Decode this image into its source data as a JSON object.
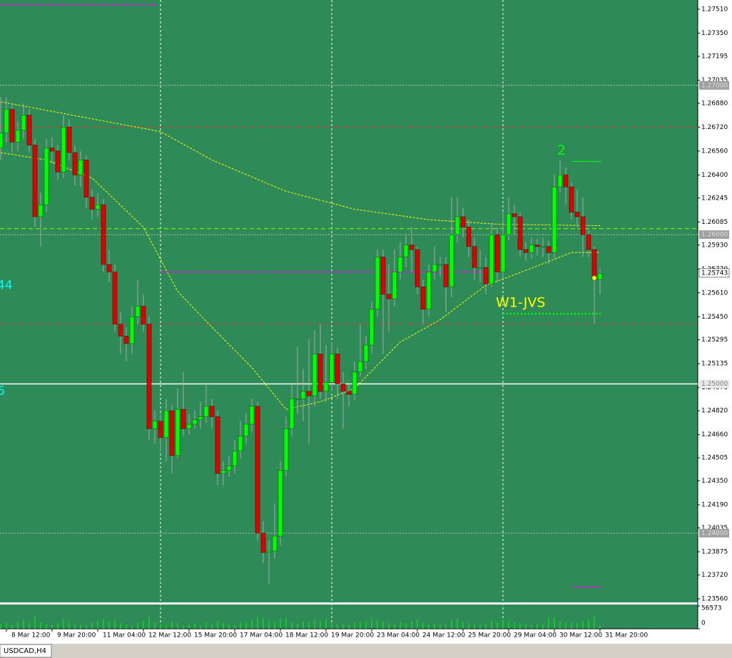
{
  "chart_data": {
    "type": "candlestick",
    "symbol": "USDCAD,H4",
    "categories": [
      null,
      "8 Mar 12:00",
      null,
      null,
      null,
      null,
      null,
      null,
      null,
      "9 Mar 20:00",
      null,
      null,
      null,
      null,
      null,
      null,
      null,
      "11 Mar 04:00",
      null,
      null,
      null,
      null,
      null,
      null,
      null,
      "12 Mar 12:00",
      null,
      null,
      null,
      null,
      null,
      null,
      null,
      "15 Mar 20:00",
      null,
      null,
      null,
      null,
      null,
      null,
      null,
      "17 Mar 04:00",
      null,
      null,
      null,
      null,
      null,
      null,
      null,
      "18 Mar 12:00",
      null,
      null,
      null,
      null,
      null,
      null,
      null,
      "19 Mar 20:00",
      null,
      null,
      null,
      null,
      null,
      null,
      null,
      "23 Mar 04:00",
      null,
      null,
      null,
      null,
      null,
      null,
      null,
      "24 Mar 12:00",
      null,
      null,
      null,
      null,
      null,
      null,
      null,
      "25 Mar 20:00",
      null,
      null,
      null,
      null,
      null,
      null,
      null,
      "29 Mar 04:00",
      null,
      null,
      null,
      null,
      null,
      null,
      null,
      "30 Mar 12:00",
      null,
      null,
      null,
      null,
      null,
      null,
      null,
      "31 Mar 20:00"
    ],
    "open": [
      1.2658,
      1.2668,
      1.2684,
      1.2662,
      1.267,
      1.268,
      1.266,
      1.2612,
      1.262,
      1.2658,
      1.2656,
      1.2642,
      1.2672,
      1.2655,
      1.264,
      1.265,
      1.2625,
      1.2617,
      1.262,
      1.258,
      1.2575,
      1.254,
      1.2532,
      1.2527,
      1.2545,
      1.2552,
      1.254,
      1.247,
      1.2475,
      1.2464,
      1.2482,
      1.2452,
      1.2483,
      1.247,
      1.2473,
      1.2476,
      1.2478,
      1.2485,
      1.2478,
      1.244,
      1.2442,
      1.2445,
      1.2455,
      1.2465,
      1.2473,
      1.2485,
      1.24,
      1.2387,
      1.2388,
      1.2398,
      1.2442,
      1.247,
      1.249,
      1.249,
      1.2495,
      1.2492,
      1.252,
      1.2495,
      1.2501,
      1.252,
      1.25,
      1.2495,
      1.2493,
      1.2508,
      1.2515,
      1.2526,
      1.255,
      1.2585,
      1.256,
      1.2557,
      1.2575,
      1.2585,
      1.2593,
      1.259,
      1.2565,
      1.255,
      1.2575,
      1.258,
      1.258,
      1.2565,
      1.26,
      1.2612,
      1.2605,
      1.2592,
      1.2578,
      1.2578,
      1.2567,
      1.26,
      1.2575,
      1.26,
      1.2614,
      1.2612,
      1.259,
      1.2588,
      1.2593,
      1.2592,
      1.2592,
      1.2588,
      1.2632,
      1.264,
      1.2632,
      1.2615,
      1.2612,
      1.26,
      1.259,
      1.257
    ],
    "high": [
      1.2692,
      1.2692,
      1.2688,
      1.2676,
      1.2688,
      1.2684,
      1.2664,
      1.2628,
      1.2664,
      1.2665,
      1.266,
      1.268,
      1.2677,
      1.266,
      1.2656,
      1.2653,
      1.263,
      1.2628,
      1.2624,
      1.259,
      1.258,
      1.2548,
      1.2538,
      1.2552,
      1.257,
      1.256,
      1.2545,
      1.2482,
      1.248,
      1.249,
      1.2486,
      1.2497,
      1.2508,
      1.248,
      1.2482,
      1.2488,
      1.25,
      1.249,
      1.2482,
      1.2448,
      1.2452,
      1.2462,
      1.2475,
      1.248,
      1.249,
      1.2488,
      1.2408,
      1.2395,
      1.242,
      1.2448,
      1.2478,
      1.25,
      1.2525,
      1.251,
      1.253,
      1.2536,
      1.254,
      1.2526,
      1.2528,
      1.2524,
      1.2508,
      1.25,
      1.2515,
      1.254,
      1.2532,
      1.2555,
      1.259,
      1.259,
      1.258,
      1.259,
      1.2595,
      1.26,
      1.2605,
      1.2592,
      1.257,
      1.258,
      1.2592,
      1.2585,
      1.2585,
      1.2625,
      1.2625,
      1.2618,
      1.261,
      1.2598,
      1.259,
      1.2585,
      1.2608,
      1.2605,
      1.2615,
      1.2625,
      1.262,
      1.2615,
      1.2595,
      1.2598,
      1.2597,
      1.2598,
      1.2596,
      1.264,
      1.265,
      1.2645,
      1.2635,
      1.263,
      1.2625,
      1.2603,
      1.2592,
      1.2577
    ],
    "low": [
      1.265,
      1.2662,
      1.2655,
      1.2656,
      1.2664,
      1.2655,
      1.2605,
      1.2592,
      1.2615,
      1.2648,
      1.2637,
      1.2638,
      1.265,
      1.2633,
      1.2632,
      1.2618,
      1.261,
      1.2612,
      1.2575,
      1.2568,
      1.2535,
      1.252,
      1.2515,
      1.252,
      1.254,
      1.2535,
      1.2462,
      1.246,
      1.2455,
      1.2448,
      1.244,
      1.245,
      1.2465,
      1.2466,
      1.247,
      1.247,
      1.2474,
      1.247,
      1.2432,
      1.2432,
      1.2438,
      1.244,
      1.245,
      1.246,
      1.2468,
      1.2395,
      1.238,
      1.2366,
      1.2383,
      1.2392,
      1.2438,
      1.2465,
      1.248,
      1.2475,
      1.246,
      1.2485,
      1.249,
      1.2488,
      1.2495,
      1.249,
      1.247,
      1.2485,
      1.2489,
      1.2505,
      1.251,
      1.252,
      1.2545,
      1.252,
      1.2535,
      1.2552,
      1.257,
      1.2578,
      1.2575,
      1.256,
      1.254,
      1.2545,
      1.257,
      1.2572,
      1.2548,
      1.2558,
      1.2595,
      1.2598,
      1.2585,
      1.257,
      1.2568,
      1.256,
      1.2565,
      1.2568,
      1.257,
      1.2596,
      1.26,
      1.2585,
      1.2582,
      1.2584,
      1.2586,
      1.2585,
      1.258,
      1.2584,
      1.2628,
      1.262,
      1.261,
      1.2605,
      1.2585,
      1.2585,
      1.254,
      1.256
    ],
    "close": [
      1.2668,
      1.2684,
      1.2662,
      1.267,
      1.268,
      1.266,
      1.2612,
      1.262,
      1.2658,
      1.2656,
      1.2642,
      1.2672,
      1.2655,
      1.264,
      1.265,
      1.2625,
      1.2617,
      1.262,
      1.258,
      1.2575,
      1.254,
      1.2532,
      1.2527,
      1.2545,
      1.2552,
      1.254,
      1.247,
      1.2475,
      1.2464,
      1.2482,
      1.2452,
      1.2483,
      1.247,
      1.2473,
      1.2476,
      1.2478,
      1.2485,
      1.2478,
      1.244,
      1.2442,
      1.2445,
      1.2455,
      1.2465,
      1.2473,
      1.2485,
      1.24,
      1.2387,
      1.2388,
      1.2398,
      1.2442,
      1.247,
      1.249,
      1.249,
      1.2495,
      1.2492,
      1.252,
      1.2495,
      1.2501,
      1.252,
      1.25,
      1.2495,
      1.2493,
      1.2508,
      1.2515,
      1.2526,
      1.255,
      1.2585,
      1.256,
      1.2557,
      1.2575,
      1.2585,
      1.2593,
      1.259,
      1.2565,
      1.255,
      1.2575,
      1.258,
      1.258,
      1.2565,
      1.26,
      1.2612,
      1.2605,
      1.2592,
      1.2578,
      1.2578,
      1.2567,
      1.26,
      1.2575,
      1.26,
      1.2614,
      1.2612,
      1.259,
      1.2588,
      1.2593,
      1.2592,
      1.2592,
      1.2588,
      1.2632,
      1.264,
      1.2632,
      1.2615,
      1.2612,
      1.26,
      1.259,
      1.257,
      1.2574
    ],
    "up_color": "#00ff00",
    "down_color": "#e00000",
    "volume": [
      12000,
      15000,
      9000,
      18000,
      22000,
      14000,
      30000,
      16000,
      11000,
      9000,
      13000,
      24000,
      17000,
      12000,
      10000,
      8000,
      15000,
      20000,
      25000,
      18000,
      22000,
      14000,
      12000,
      9000,
      16000,
      21000,
      28000,
      15000,
      12000,
      10000,
      18000,
      14000,
      9000,
      11000,
      13000,
      8000,
      16000,
      12000,
      20000,
      15000,
      11000,
      9000,
      14000,
      17000,
      22000,
      30000,
      26000,
      20000,
      18000,
      24000,
      27000,
      15000,
      12000,
      18000,
      16000,
      22000,
      19000,
      25000,
      14000,
      11000,
      13000,
      9000,
      15000,
      17000,
      20000,
      24000,
      21000,
      18000,
      14000,
      12000,
      16000,
      13000,
      19000,
      22000,
      15000,
      11000,
      14000,
      10000,
      12000,
      23000,
      25000,
      18000,
      14000,
      12000,
      10000,
      13000,
      20000,
      16000,
      22000,
      19000,
      15000,
      13000,
      11000,
      9000,
      12000,
      10000,
      26000,
      28000,
      20000,
      15000,
      17000,
      14000,
      19000,
      22000,
      30000,
      8000
    ],
    "volume_color": "#00ff00",
    "volume_ylim": [
      0,
      56573
    ],
    "volume_ticks": [
      {
        "value": 56573,
        "label": "56573"
      },
      0
    ],
    "ylim": [
      1.23536,
      1.27572
    ],
    "yticks": [
      {
        "value": 1.2751,
        "label": "1.27510"
      },
      {
        "value": 1.2735,
        "label": "1.27350"
      },
      {
        "value": 1.27195,
        "label": "1.27195"
      },
      {
        "value": 1.27035,
        "label": "1.27035"
      },
      {
        "value": 1.2688,
        "label": "1.26880"
      },
      {
        "value": 1.2672,
        "label": "1.26720"
      },
      {
        "value": 1.2656,
        "label": "1.26560"
      },
      {
        "value": 1.264,
        "label": "1.26400"
      },
      {
        "value": 1.26245,
        "label": "1.26245"
      },
      {
        "value": 1.26085,
        "label": "1.26085"
      },
      {
        "value": 1.2593,
        "label": "1.25930"
      },
      {
        "value": 1.2577,
        "label": "1.25770"
      },
      {
        "value": 1.2561,
        "label": "1.25610"
      },
      {
        "value": 1.2545,
        "label": "1.25450"
      },
      {
        "value": 1.25295,
        "label": "1.25295"
      },
      {
        "value": 1.25135,
        "label": "1.25135"
      },
      {
        "value": 1.24975,
        "label": "1.24975"
      },
      {
        "value": 1.2482,
        "label": "1.24820"
      },
      {
        "value": 1.2466,
        "label": "1.24660"
      },
      {
        "value": 1.24505,
        "label": "1.24505"
      },
      {
        "value": 1.2435,
        "label": "1.24350"
      },
      {
        "value": 1.2419,
        "label": "1.24190"
      },
      {
        "value": 1.24035,
        "label": "1.24035"
      },
      {
        "value": 1.23875,
        "label": "1.23875"
      },
      {
        "value": 1.2372,
        "label": "1.23720"
      },
      {
        "value": 1.2356,
        "label": "1.23560"
      }
    ],
    "lines": [
      {
        "color": "#ffff00",
        "x": [
          0,
          28,
          37,
          50,
          62,
          75,
          87,
          105
        ],
        "values": [
          1.2689,
          1.2669,
          1.265,
          1.2629,
          1.2617,
          1.261,
          1.2607,
          1.2606
        ]
      },
      {
        "color": "#ffff00",
        "x": [
          0,
          8,
          16,
          25,
          31,
          37,
          44,
          50,
          56,
          62,
          70,
          77,
          85,
          92,
          100,
          105
        ],
        "values": [
          1.2655,
          1.265,
          1.2638,
          1.2605,
          1.2562,
          1.2538,
          1.2511,
          1.2483,
          1.2488,
          1.2497,
          1.2528,
          1.2543,
          1.2566,
          1.2576,
          1.2588,
          1.2588
        ]
      }
    ],
    "levels": [
      {
        "value": 1.27,
        "label": "1.27000",
        "style": "grey"
      },
      {
        "value": 1.2672,
        "style": "red"
      },
      {
        "value": 1.2604,
        "style": "green"
      },
      {
        "value": 1.26,
        "label": "1.26000",
        "style": "grey"
      },
      {
        "value": 1.254,
        "style": "red"
      },
      {
        "value": 1.25,
        "label": "1.25000",
        "style": "white"
      },
      {
        "value": 1.24,
        "label": "1.24000",
        "style": "grey"
      }
    ],
    "last_price": {
      "value": 1.25743,
      "label": "1.25743"
    },
    "segments": [
      {
        "value": 1.2754,
        "from": 0,
        "to": 27,
        "color": "#ff00ff",
        "style": "dotted"
      },
      {
        "value": 1.2575,
        "from": 28,
        "to": 87,
        "color": "#ff00ff",
        "style": "dotted"
      },
      {
        "value": 1.2547,
        "from": 88,
        "to": 105,
        "color": "#00ff00",
        "style": "dotted",
        "label": "W1-JVS",
        "label_color": "#ffff00"
      },
      {
        "value": 1.2649,
        "from": 100,
        "to": 105,
        "color": "#00ff00",
        "style": "solid",
        "label": "2",
        "label_color": "#00ff00"
      },
      {
        "value": 1.2364,
        "from": 100,
        "to": 105,
        "color": "#ff00ff",
        "style": "solid"
      }
    ],
    "marker": {
      "x": 104,
      "value": 1.2571,
      "color": "#ffff00"
    },
    "side_labels": [
      {
        "value": 1.2566,
        "label": "44"
      },
      {
        "value": 1.2495,
        "label": "6"
      }
    ],
    "side_label_color": "#00ffff"
  }
}
